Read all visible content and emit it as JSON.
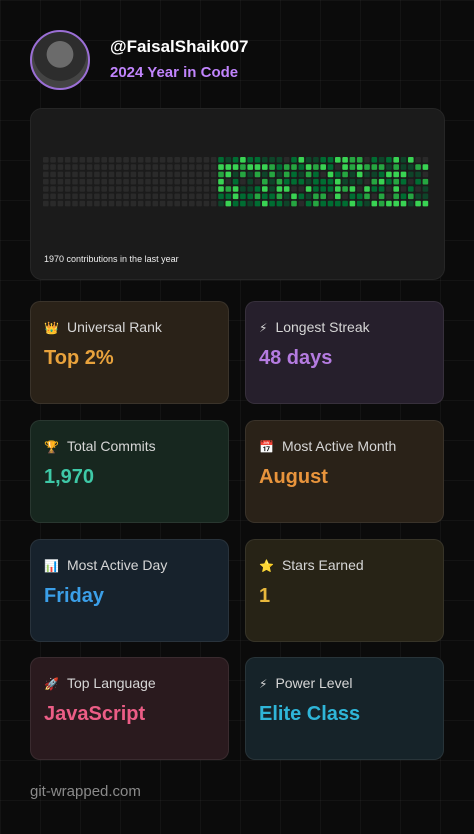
{
  "header": {
    "username": "@FaisalShaik007",
    "subtitle": "2024 Year in Code"
  },
  "contributions": {
    "caption": "1970 contributions in the last year"
  },
  "cards": [
    {
      "icon": "👑",
      "label": "Universal Rank",
      "value": "Top 2%"
    },
    {
      "icon": "⚡",
      "label": "Longest Streak",
      "value": "48 days"
    },
    {
      "icon": "🏆",
      "label": "Total Commits",
      "value": "1,970"
    },
    {
      "icon": "📅",
      "label": "Most Active Month",
      "value": "August"
    },
    {
      "icon": "📊",
      "label": "Most Active Day",
      "value": "Friday"
    },
    {
      "icon": "⭐",
      "label": "Stars Earned",
      "value": "1"
    },
    {
      "icon": "🚀",
      "label": "Top Language",
      "value": "JavaScript"
    },
    {
      "icon": "⚡",
      "label": "Power Level",
      "value": "Elite Class"
    }
  ],
  "footer": "git-wrapped.com"
}
